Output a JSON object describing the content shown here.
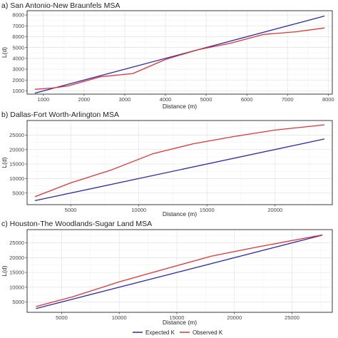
{
  "legend": {
    "items": [
      {
        "label": "Expected K",
        "color": "#2b2bb0"
      },
      {
        "label": "Observed K",
        "color": "#e63232"
      }
    ]
  },
  "chart_data": [
    {
      "type": "line",
      "title": "a) San Antonio-New Braunfels MSA",
      "xlabel": "Distance (m)",
      "ylabel": "L(d)",
      "xlim": [
        600,
        8100
      ],
      "ylim": [
        700,
        8400
      ],
      "xticks": [
        1000,
        2000,
        3000,
        4000,
        5000,
        6000,
        7000,
        8000
      ],
      "yticks": [
        1000,
        2000,
        3000,
        4000,
        5000,
        6000,
        7000,
        8000
      ],
      "grid": true,
      "series": [
        {
          "name": "Expected K",
          "color": "#2b2bb0",
          "x": [
            800,
            7900
          ],
          "y": [
            800,
            7900
          ]
        },
        {
          "name": "Observed K",
          "color": "#e63232",
          "x": [
            800,
            1200,
            1600,
            2400,
            3200,
            4000,
            4800,
            5600,
            6400,
            7200,
            7900
          ],
          "y": [
            1150,
            1250,
            1450,
            2300,
            2600,
            3900,
            4800,
            5400,
            6200,
            6450,
            6800
          ]
        }
      ]
    },
    {
      "type": "line",
      "title": "b) Dallas-Fort Worth-Arlington MSA",
      "xlabel": "Distance (m)",
      "ylabel": "L(d)",
      "xlim": [
        1800,
        24200
      ],
      "ylim": [
        1000,
        30000
      ],
      "xticks": [
        5000,
        10000,
        15000,
        20000
      ],
      "yticks": [
        5000,
        10000,
        15000,
        20000,
        25000
      ],
      "grid": true,
      "series": [
        {
          "name": "Expected K",
          "color": "#2b2bb0",
          "x": [
            2400,
            23600
          ],
          "y": [
            2400,
            23600
          ]
        },
        {
          "name": "Observed K",
          "color": "#e63232",
          "x": [
            2400,
            5000,
            8000,
            11000,
            14000,
            17000,
            20000,
            23600
          ],
          "y": [
            3800,
            8500,
            13000,
            18500,
            22000,
            24500,
            26700,
            28500
          ]
        }
      ]
    },
    {
      "type": "line",
      "title": "c) Houston-The Woodlands-Sugar Land MSA",
      "xlabel": "Distance (m)",
      "ylabel": "L(d)",
      "xlim": [
        2000,
        28500
      ],
      "ylim": [
        1500,
        29500
      ],
      "xticks": [
        5000,
        10000,
        15000,
        20000,
        25000
      ],
      "yticks": [
        5000,
        10000,
        15000,
        20000,
        25000
      ],
      "grid": true,
      "series": [
        {
          "name": "Expected K",
          "color": "#2b2bb0",
          "x": [
            2800,
            27600
          ],
          "y": [
            2800,
            27600
          ]
        },
        {
          "name": "Observed K",
          "color": "#e63232",
          "x": [
            2800,
            6000,
            10000,
            14000,
            18000,
            22000,
            27600
          ],
          "y": [
            3500,
            6800,
            11800,
            16200,
            20500,
            23600,
            27700
          ]
        }
      ]
    }
  ]
}
